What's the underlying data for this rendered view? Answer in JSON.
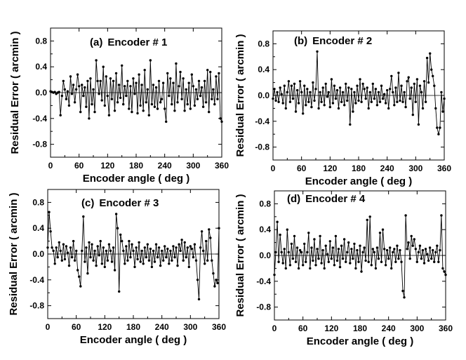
{
  "chart_data": [
    {
      "type": "line",
      "panel_label": "(a)",
      "title": "Encoder  # 1",
      "xlabel": "Encoder angle ( deg )",
      "ylabel": "Residual Error  ( arcmin )",
      "xlim": [
        0,
        360
      ],
      "ylim": [
        -1.0,
        1.0
      ],
      "xticks": [
        "0",
        "60",
        "120",
        "180",
        "240",
        "300",
        "360"
      ],
      "yticks": [
        "0.8",
        "0.4",
        "0.0",
        "-0.4",
        "-0.8"
      ],
      "reference_line": 0.0,
      "series": [
        {
          "name": "Encoder 1",
          "x": [
            0,
            3,
            6,
            9,
            12,
            15,
            18,
            21,
            24,
            27,
            30,
            33,
            36,
            39,
            42,
            45,
            48,
            51,
            54,
            57,
            60,
            63,
            66,
            69,
            72,
            75,
            78,
            81,
            84,
            87,
            90,
            93,
            96,
            99,
            102,
            105,
            108,
            111,
            114,
            117,
            120,
            123,
            126,
            129,
            132,
            135,
            138,
            141,
            144,
            147,
            150,
            153,
            156,
            159,
            162,
            165,
            168,
            171,
            174,
            177,
            180,
            183,
            186,
            189,
            192,
            195,
            198,
            201,
            204,
            207,
            210,
            213,
            216,
            219,
            222,
            225,
            228,
            231,
            234,
            237,
            240,
            243,
            246,
            249,
            252,
            255,
            258,
            261,
            264,
            267,
            270,
            273,
            276,
            279,
            282,
            285,
            288,
            291,
            294,
            297,
            300,
            303,
            306,
            309,
            312,
            315,
            318,
            321,
            324,
            327,
            330,
            333,
            336,
            339,
            342,
            345,
            348,
            351,
            354,
            357,
            360
          ],
          "y": [
            0.02,
            0.01,
            0.0,
            0.01,
            -0.02,
            0.0,
            0.01,
            -0.35,
            -0.05,
            0.18,
            0.05,
            -0.1,
            0.02,
            -0.2,
            0.25,
            -0.02,
            0.12,
            -0.15,
            0.05,
            0.28,
            0.1,
            -0.3,
            0.12,
            -0.05,
            0.08,
            -0.22,
            0.18,
            -0.4,
            0.22,
            -0.18,
            0.05,
            -0.3,
            0.5,
            0.18,
            -0.02,
            0.18,
            -0.12,
            0.4,
            -0.2,
            0.25,
            -0.05,
            -0.35,
            0.22,
            -0.1,
            0.18,
            -0.28,
            0.3,
            -0.15,
            0.12,
            -0.08,
            0.42,
            -0.18,
            0.1,
            -0.05,
            0.18,
            -0.25,
            0.1,
            -0.3,
            0.22,
            -0.02,
            0.15,
            -0.32,
            0.28,
            -0.2,
            0.12,
            -0.28,
            0.35,
            -0.15,
            0.05,
            -0.35,
            0.5,
            -0.18,
            0.12,
            -0.22,
            0.08,
            -0.25,
            0.18,
            -0.15,
            -0.1,
            0.15,
            -0.25,
            -0.45,
            0.3,
            -0.05,
            0.22,
            -0.18,
            0.15,
            -0.28,
            0.45,
            -0.15,
            0.1,
            0.32,
            -0.1,
            0.22,
            -0.28,
            0.05,
            -0.18,
            0.15,
            -0.25,
            0.28,
            0.1,
            -0.2,
            0.05,
            -0.1,
            0.18,
            -0.05,
            0.08,
            -0.22,
            0.18,
            -0.15,
            0.35,
            -0.3,
            0.32,
            -0.1,
            0.05,
            -0.18,
            0.25,
            -0.1,
            0.3,
            -0.4,
            -0.45
          ]
        }
      ]
    },
    {
      "type": "line",
      "panel_label": "(b)",
      "title": "Encoder # 2",
      "xlabel": "Encoder angle ( deg )",
      "ylabel": "Residual Error  ( arcmin )",
      "xlim": [
        0,
        360
      ],
      "ylim": [
        -1.0,
        1.0
      ],
      "xticks": [
        "0",
        "60",
        "120",
        "180",
        "240",
        "300",
        "360"
      ],
      "yticks": [
        "0.8",
        "0.4",
        "0.0",
        "-0.4",
        "-0.8"
      ],
      "reference_line": 0.0,
      "series": [
        {
          "name": "Encoder 2",
          "x": [
            0,
            3,
            6,
            9,
            12,
            15,
            18,
            21,
            24,
            27,
            30,
            33,
            36,
            39,
            42,
            45,
            48,
            51,
            54,
            57,
            60,
            63,
            66,
            69,
            72,
            75,
            78,
            81,
            84,
            87,
            90,
            93,
            96,
            99,
            102,
            105,
            108,
            111,
            114,
            117,
            120,
            123,
            126,
            129,
            132,
            135,
            138,
            141,
            144,
            147,
            150,
            153,
            156,
            159,
            162,
            165,
            168,
            171,
            174,
            177,
            180,
            183,
            186,
            189,
            192,
            195,
            198,
            201,
            204,
            207,
            210,
            213,
            216,
            219,
            222,
            225,
            228,
            231,
            234,
            237,
            240,
            243,
            246,
            249,
            252,
            255,
            258,
            261,
            264,
            267,
            270,
            273,
            276,
            279,
            282,
            285,
            288,
            291,
            294,
            297,
            300,
            303,
            306,
            309,
            312,
            315,
            318,
            321,
            324,
            327,
            330,
            333,
            336,
            339,
            342,
            345,
            348,
            351,
            354,
            357,
            360
          ],
          "y": [
            -0.05,
            0.1,
            -0.08,
            0.05,
            -0.1,
            0.12,
            0.02,
            -0.12,
            0.15,
            -0.2,
            0.05,
            0.22,
            -0.1,
            0.15,
            -0.05,
            0.18,
            -0.25,
            0.08,
            -0.12,
            0.22,
            0.05,
            -0.28,
            0.15,
            -0.15,
            0.1,
            -0.1,
            0.05,
            -0.18,
            0.2,
            -0.08,
            0.1,
            0.68,
            -0.2,
            0.05,
            -0.1,
            0.12,
            -0.15,
            0.18,
            -0.02,
            0.05,
            -0.18,
            0.25,
            -0.12,
            0.15,
            -0.05,
            0.08,
            -0.2,
            0.12,
            -0.1,
            0.05,
            -0.15,
            0.18,
            -0.08,
            0.12,
            -0.45,
            0.1,
            -0.25,
            0.05,
            -0.12,
            0.15,
            -0.08,
            0.25,
            -0.1,
            0.18,
            0.1,
            -0.05,
            0.12,
            -0.2,
            0.05,
            -0.1,
            0.18,
            -0.05,
            0.1,
            -0.15,
            0.05,
            -0.1,
            0.15,
            -0.05,
            0.02,
            -0.12,
            0.08,
            -0.2,
            0.1,
            0.3,
            0.05,
            -0.15,
            0.12,
            -0.1,
            0.35,
            -0.08,
            0.15,
            -0.1,
            0.05,
            -0.18,
            0.22,
            0.28,
            -0.05,
            0.12,
            -0.3,
            0.18,
            -0.1,
            0.25,
            -0.45,
            0.15,
            0.05,
            -0.2,
            0.22,
            -0.1,
            0.58,
            0.2,
            0.65,
            0.4,
            0.3,
            0.15,
            -0.2,
            -0.5,
            -0.6,
            -0.5,
            0.05,
            -0.25,
            -0.05
          ]
        }
      ]
    },
    {
      "type": "line",
      "panel_label": "(c)",
      "title": "Encoder  # 3",
      "xlabel": "Encoder angle ( deg )",
      "ylabel": "Residual Error  ( arcmin )",
      "xlim": [
        0,
        360
      ],
      "ylim": [
        -1.0,
        1.0
      ],
      "xticks": [
        "0",
        "60",
        "120",
        "180",
        "240",
        "300",
        "360"
      ],
      "yticks": [
        "0.8",
        "0.4",
        "0.0",
        "-0.4",
        "-0.8"
      ],
      "reference_line": 0.0,
      "series": [
        {
          "name": "Encoder 3",
          "x": [
            0,
            3,
            6,
            9,
            12,
            15,
            18,
            21,
            24,
            27,
            30,
            33,
            36,
            39,
            42,
            45,
            48,
            51,
            54,
            57,
            60,
            63,
            66,
            69,
            72,
            75,
            78,
            81,
            84,
            87,
            90,
            93,
            96,
            99,
            102,
            105,
            108,
            111,
            114,
            117,
            120,
            123,
            126,
            129,
            132,
            135,
            138,
            141,
            144,
            147,
            150,
            153,
            156,
            159,
            162,
            165,
            168,
            171,
            174,
            177,
            180,
            183,
            186,
            189,
            192,
            195,
            198,
            201,
            204,
            207,
            210,
            213,
            216,
            219,
            222,
            225,
            228,
            231,
            234,
            237,
            240,
            243,
            246,
            249,
            252,
            255,
            258,
            261,
            264,
            267,
            270,
            273,
            276,
            279,
            282,
            285,
            288,
            291,
            294,
            297,
            300,
            303,
            306,
            309,
            312,
            315,
            318,
            321,
            324,
            327,
            330,
            333,
            336,
            339,
            342,
            345,
            348,
            351,
            354,
            357,
            360
          ],
          "y": [
            0.1,
            0.65,
            0.35,
            0.1,
            0.05,
            -0.15,
            0.1,
            -0.05,
            0.18,
            0.05,
            -0.1,
            0.15,
            -0.08,
            0.12,
            0.02,
            -0.18,
            0.1,
            -0.05,
            0.2,
            -0.1,
            0.05,
            -0.25,
            -0.35,
            -0.5,
            0.05,
            0.58,
            -0.12,
            0.1,
            -0.3,
            0.18,
            -0.05,
            0.15,
            -0.1,
            0.05,
            -0.18,
            0.12,
            -0.02,
            0.2,
            -0.15,
            0.1,
            -0.2,
            0.05,
            -0.1,
            0.15,
            0.05,
            -0.12,
            0.1,
            -0.25,
            0.62,
            0.4,
            -0.58,
            0.3,
            0.2,
            0.05,
            -0.15,
            0.12,
            -0.1,
            0.2,
            -0.05,
            0.15,
            0.05,
            -0.2,
            0.1,
            -0.08,
            0.18,
            -0.12,
            0.05,
            -0.15,
            0.1,
            -0.05,
            0.15,
            -0.1,
            0.08,
            -0.2,
            0.05,
            -0.12,
            0.15,
            -0.05,
            0.1,
            -0.18,
            0.05,
            -0.1,
            0.12,
            -0.05,
            0.08,
            -0.15,
            0.05,
            -0.1,
            0.12,
            -0.05,
            0.1,
            -0.18,
            0.15,
            0.05,
            0.22,
            -0.1,
            0.18,
            -0.05,
            0.1,
            -0.2,
            0.12,
            0.08,
            -0.05,
            0.15,
            -0.1,
            -0.4,
            -0.7,
            0.1,
            0.35,
            0.05,
            -0.15,
            0.2,
            -0.1,
            0.38,
            0.25,
            -0.1,
            -0.3,
            -0.5,
            -0.4,
            -0.45,
            0.4
          ]
        }
      ]
    },
    {
      "type": "line",
      "panel_label": "(d)",
      "title": "Encoder  # 4",
      "xlabel": "Encoder angle ( deg )",
      "ylabel": "Residual Error  ( arcmin )",
      "xlim": [
        0,
        360
      ],
      "ylim": [
        -1.0,
        1.0
      ],
      "xticks": [
        "0",
        "60",
        "120",
        "180",
        "240",
        "300",
        "360"
      ],
      "yticks": [
        "0.8",
        "0.4",
        "0.0",
        "-0.4",
        "-0.8"
      ],
      "reference_line": 0.0,
      "series": [
        {
          "name": "Encoder 4",
          "x": [
            0,
            3,
            6,
            9,
            12,
            15,
            18,
            21,
            24,
            27,
            30,
            33,
            36,
            39,
            42,
            45,
            48,
            51,
            54,
            57,
            60,
            63,
            66,
            69,
            72,
            75,
            78,
            81,
            84,
            87,
            90,
            93,
            96,
            99,
            102,
            105,
            108,
            111,
            114,
            117,
            120,
            123,
            126,
            129,
            132,
            135,
            138,
            141,
            144,
            147,
            150,
            153,
            156,
            159,
            162,
            165,
            168,
            171,
            174,
            177,
            180,
            183,
            186,
            189,
            192,
            195,
            198,
            201,
            204,
            207,
            210,
            213,
            216,
            219,
            222,
            225,
            228,
            231,
            234,
            237,
            240,
            243,
            246,
            249,
            252,
            255,
            258,
            261,
            264,
            267,
            270,
            273,
            276,
            279,
            282,
            285,
            288,
            291,
            294,
            297,
            300,
            303,
            306,
            309,
            312,
            315,
            318,
            321,
            324,
            327,
            330,
            333,
            336,
            339,
            342,
            345,
            348,
            351,
            354,
            357,
            360
          ],
          "y": [
            -0.3,
            0.05,
            0.52,
            -0.1,
            0.32,
            0.05,
            -0.12,
            0.1,
            -0.2,
            0.4,
            0.05,
            -0.15,
            0.18,
            -0.05,
            0.3,
            -0.1,
            0.12,
            -0.2,
            0.08,
            0.05,
            -0.15,
            0.18,
            -0.1,
            0.05,
            0.35,
            -0.2,
            0.12,
            -0.08,
            0.25,
            -0.15,
            0.1,
            -0.05,
            0.3,
            -0.12,
            0.08,
            -0.2,
            0.15,
            0.02,
            -0.1,
            0.22,
            -0.05,
            0.12,
            -0.15,
            0.3,
            -0.08,
            0.1,
            -0.18,
            0.15,
            -0.05,
            0.25,
            -0.1,
            0.05,
            0.2,
            -0.12,
            0.1,
            -0.05,
            0.18,
            -0.2,
            0.08,
            -0.1,
            0.15,
            -0.25,
            0.05,
            0.12,
            -0.08,
            0.55,
            -0.1,
            0.6,
            -0.15,
            0.1,
            0.05,
            -0.2,
            0.12,
            -0.05,
            0.35,
            -0.1,
            0.4,
            0.1,
            -0.15,
            0.08,
            -0.05,
            0.12,
            -0.2,
            0.05,
            0.1,
            -0.1,
            0.15,
            -0.05,
            0.08,
            -0.1,
            -0.55,
            -0.65,
            0.62,
            0.1,
            0.2,
            -0.05,
            0.3,
            0.15,
            0.25,
            0.1,
            -0.1,
            0.05,
            0.15,
            -0.05,
            0.08,
            -0.12,
            0.1,
            0.02,
            -0.08,
            0.12,
            -0.05,
            0.08,
            -0.1,
            0.05,
            0.15,
            -0.1,
            0.08,
            0.62,
            -0.2,
            -0.25,
            -0.3
          ]
        }
      ]
    }
  ]
}
